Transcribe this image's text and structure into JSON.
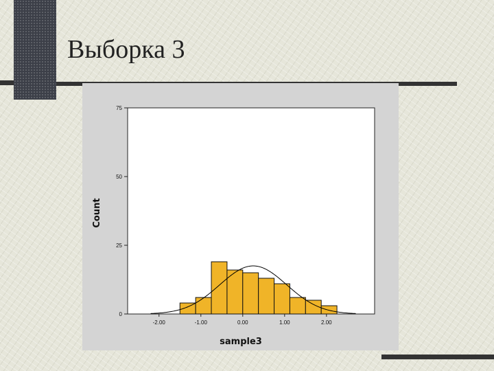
{
  "slide": {
    "title": "Выборка 3"
  },
  "colors": {
    "plot_background": "#ffffff",
    "panel_background": "#d4d4d4",
    "bar_fill": "#f0b428",
    "bar_stroke": "#111111",
    "curve": "#000000",
    "dark_accent": "#3c3f48"
  },
  "chart_data": {
    "type": "bar",
    "xlabel": "sample3",
    "ylabel": "Count",
    "xlim": [
      -2.75,
      3.15
    ],
    "ylim": [
      0,
      75
    ],
    "yticks": [
      0,
      25,
      50,
      75
    ],
    "ytick_labels": [
      "0",
      "25",
      "50",
      "75"
    ],
    "xticks": [
      -2,
      -1,
      0,
      1,
      2
    ],
    "xtick_labels": [
      "-2.00",
      "-1.00",
      "0.00",
      "1.00",
      "2.00"
    ],
    "grid": false,
    "bin_width": 0.375,
    "bins_start": [
      -1.5,
      -1.125,
      -0.75,
      -0.375,
      0.0,
      0.375,
      0.75,
      1.125,
      1.5,
      1.875
    ],
    "values": [
      4,
      6,
      19,
      16,
      15,
      13,
      11,
      6,
      5,
      3
    ],
    "normal_curve": {
      "mean": 0.25,
      "sd": 0.8,
      "peak": 17.5
    }
  }
}
